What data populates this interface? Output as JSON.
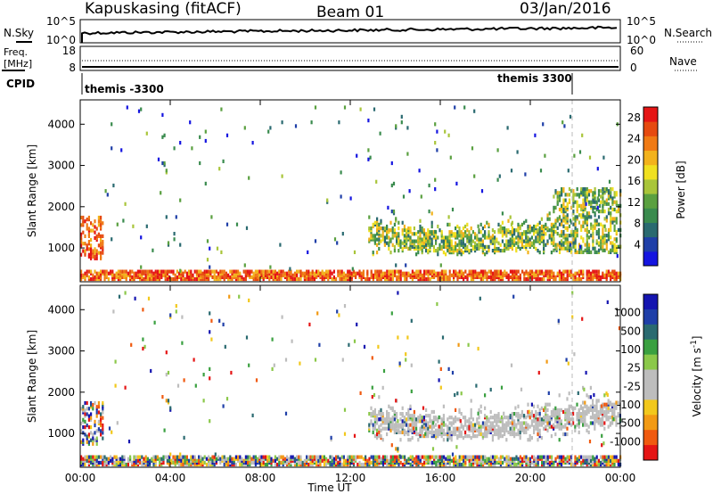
{
  "header": {
    "station": "Kapuskasing (fitACF)",
    "beam": "Beam 01",
    "date": "03/Jan/2016"
  },
  "top_panels": {
    "nsky_label": "N.Sky",
    "nsky_ticks": [
      "10^5",
      "10^0"
    ],
    "nsearch_label": "N.Search",
    "freq_label_1": "Freq.",
    "freq_label_2": "[MHz]",
    "freq_ticks": [
      "18",
      "8"
    ],
    "nave_ticks": [
      "60",
      "0"
    ],
    "nave_label": "Nave",
    "cpid_label": "CPID",
    "cpid_segments": [
      "themis -3300",
      "themis 3300"
    ]
  },
  "colors": {
    "power_scale": [
      "#1515e0",
      "#1f3fa8",
      "#2a6a70",
      "#3a8b4e",
      "#5aa040",
      "#a9c53a",
      "#f0e020",
      "#f2b21c",
      "#f07a14",
      "#e64a10",
      "#e51515"
    ],
    "velocity_scale": [
      "#e51515",
      "#f05a10",
      "#f29a14",
      "#f2c81c",
      "#bdbdbd",
      "#bdbdbd",
      "#8bc84a",
      "#3aa040",
      "#2a6a70",
      "#1f3fa8",
      "#1515b0"
    ],
    "ground_scatter": "#bdbdbd"
  },
  "chart_data": [
    {
      "type": "heatmap",
      "title": "",
      "xlabel": "Time UT",
      "ylabel": "Slant Range [km]",
      "x_ticks": [
        "00:00",
        "04:00",
        "08:00",
        "12:00",
        "16:00",
        "20:00",
        "00:00"
      ],
      "x_range_hours": [
        0,
        24
      ],
      "y_ticks": [
        1000,
        2000,
        3000,
        4000
      ],
      "y_range_km": [
        180,
        4590
      ],
      "colorbar": {
        "label": "Power [dB]",
        "ticks": [
          4,
          8,
          12,
          16,
          20,
          24,
          28
        ],
        "range": [
          0,
          30
        ]
      },
      "regions": [
        {
          "name": "near-range band",
          "t": [
            0,
            24
          ],
          "range": [
            200,
            400
          ],
          "level": "high"
        },
        {
          "name": "early echoes",
          "t": [
            0.0,
            1.0
          ],
          "range": [
            700,
            1700
          ],
          "level": "high"
        },
        {
          "name": "main echo band",
          "t": [
            12.8,
            21.0
          ],
          "range": [
            800,
            1800
          ],
          "level": "medium"
        },
        {
          "name": "late echoes",
          "t": [
            21.0,
            24.0
          ],
          "range": [
            850,
            2400
          ],
          "level": "medium"
        },
        {
          "name": "scattered echoes",
          "t": [
            1,
            24
          ],
          "range": [
            400,
            4400
          ],
          "level": "sparse"
        }
      ]
    },
    {
      "type": "heatmap",
      "title": "",
      "xlabel": "Time UT",
      "ylabel": "Slant Range [km]",
      "x_ticks": [
        "00:00",
        "04:00",
        "08:00",
        "12:00",
        "16:00",
        "20:00",
        "00:00"
      ],
      "x_range_hours": [
        0,
        24
      ],
      "y_ticks": [
        1000,
        2000,
        3000,
        4000
      ],
      "y_range_km": [
        180,
        4590
      ],
      "colorbar": {
        "label": "Velocity [m s^-1]",
        "ticks": [
          1000,
          500,
          100,
          25,
          -25,
          -100,
          -500,
          -1000
        ],
        "order": "top-to-bottom"
      },
      "regions": [
        {
          "name": "near-range band",
          "t": [
            0,
            24
          ],
          "range": [
            200,
            400
          ],
          "level": "mixed"
        },
        {
          "name": "early echoes",
          "t": [
            0.0,
            1.0
          ],
          "range": [
            700,
            1700
          ],
          "level": "mixed"
        },
        {
          "name": "ground scatter band",
          "t": [
            12.8,
            24.0
          ],
          "range": [
            800,
            2100
          ],
          "level": "ground"
        },
        {
          "name": "scattered echoes",
          "t": [
            1,
            24
          ],
          "range": [
            400,
            4400
          ],
          "level": "sparse"
        }
      ]
    }
  ]
}
